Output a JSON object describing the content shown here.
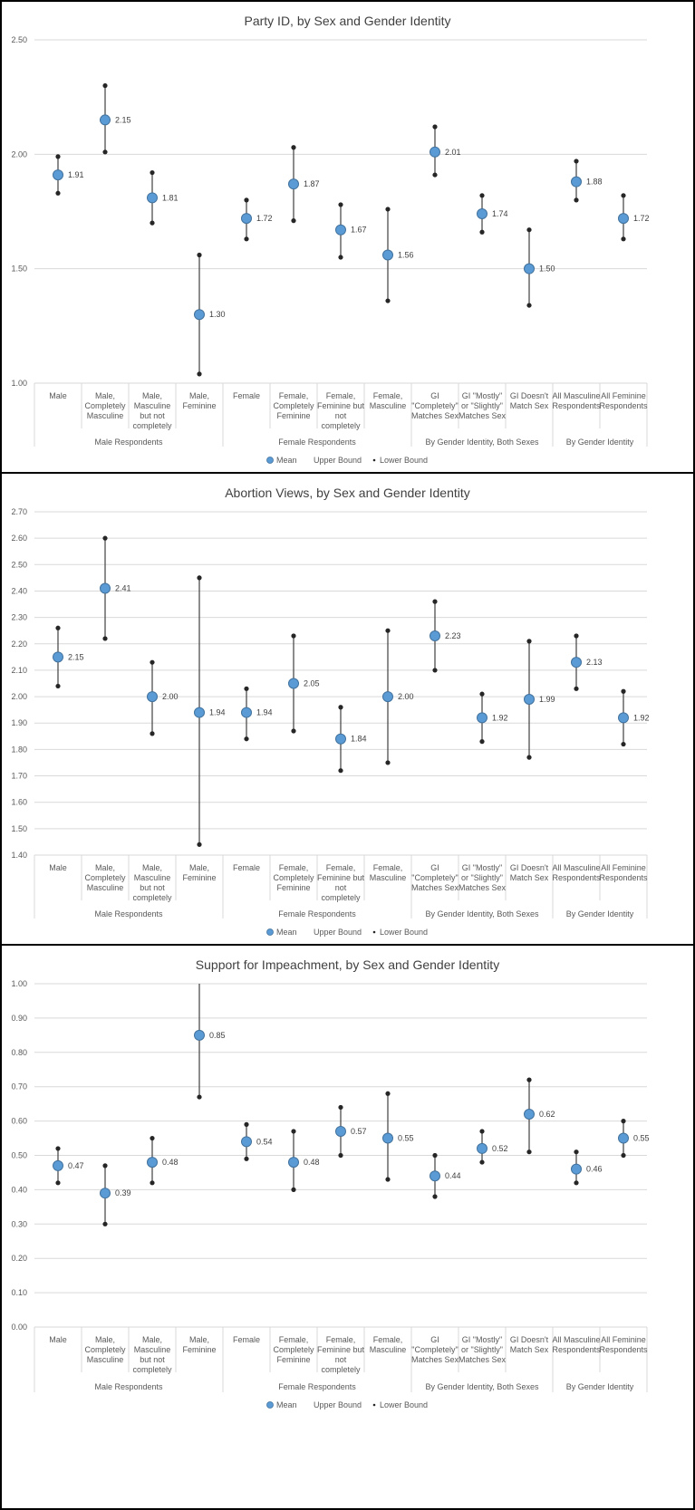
{
  "chart_data": [
    {
      "type": "errorbar",
      "title": "Party ID, by Sex and Gender Identity",
      "ylim": [
        1.0,
        2.5
      ],
      "yticks": [
        "1.00",
        "1.50",
        "2.00",
        "2.50"
      ],
      "categories": [
        "Male",
        "Male, Completely Masculine",
        "Male, Masculine but not completely",
        "Male, Feminine",
        "Female",
        "Female, Completely Feminine",
        "Female, Feminine but not completely",
        "Female, Masculine",
        "GI \"Completely\" Matches Sex",
        "GI \"Mostly\" or \"Slightly\" Matches Sex",
        "GI Doesn't Match Sex",
        "All Masculine Respondents",
        "All Feminine Respondents"
      ],
      "category_lines": [
        [
          "Male"
        ],
        [
          "Male,",
          "Completely",
          "Masculine"
        ],
        [
          "Male,",
          "Masculine",
          "but not",
          "completely"
        ],
        [
          "Male,",
          "Feminine"
        ],
        [
          "Female"
        ],
        [
          "Female,",
          "Completely",
          "Feminine"
        ],
        [
          "Female,",
          "Feminine but",
          "not",
          "completely"
        ],
        [
          "Female,",
          "Masculine"
        ],
        [
          "GI",
          "\"Completely\"",
          "Matches Sex"
        ],
        [
          "GI \"Mostly\"",
          "or \"Slightly\"",
          "Matches Sex"
        ],
        [
          "GI Doesn't",
          "Match Sex"
        ],
        [
          "All Masculine",
          "Respondents"
        ],
        [
          "All Feminine",
          "Respondents"
        ]
      ],
      "groups": [
        {
          "label": "Male Respondents",
          "start": 0,
          "end": 3
        },
        {
          "label": "Female Respondents",
          "start": 4,
          "end": 7
        },
        {
          "label": "By Gender Identity, Both Sexes",
          "start": 8,
          "end": 10
        },
        {
          "label": "By Gender Identity",
          "start": 11,
          "end": 12
        }
      ],
      "series": [
        {
          "name": "Mean",
          "values": [
            1.91,
            2.15,
            1.81,
            1.3,
            1.72,
            1.87,
            1.67,
            1.56,
            2.01,
            1.74,
            1.5,
            1.88,
            1.72
          ]
        },
        {
          "name": "Upper Bound",
          "values": [
            1.99,
            2.3,
            1.92,
            1.56,
            1.8,
            2.03,
            1.78,
            1.76,
            2.12,
            1.82,
            1.67,
            1.97,
            1.82
          ]
        },
        {
          "name": "Lower Bound",
          "values": [
            1.83,
            2.01,
            1.7,
            1.04,
            1.63,
            1.71,
            1.55,
            1.36,
            1.91,
            1.66,
            1.34,
            1.8,
            1.63
          ]
        }
      ],
      "data_labels": [
        "1.91",
        "2.15",
        "1.81",
        "1.30",
        "1.72",
        "1.87",
        "1.67",
        "1.56",
        "2.01",
        "1.74",
        "1.50",
        "1.88",
        "1.72"
      ],
      "legend": {
        "mean": "Mean",
        "upper": "Upper Bound",
        "lower": "Lower Bound"
      }
    },
    {
      "type": "errorbar",
      "title": "Abortion Views, by Sex and Gender Identity",
      "ylim": [
        1.4,
        2.7
      ],
      "yticks": [
        "1.40",
        "1.50",
        "1.60",
        "1.70",
        "1.80",
        "1.90",
        "2.00",
        "2.10",
        "2.20",
        "2.30",
        "2.40",
        "2.50",
        "2.60",
        "2.70"
      ],
      "categories": [
        "Male",
        "Male, Completely Masculine",
        "Male, Masculine but not completely",
        "Male, Feminine",
        "Female",
        "Female, Completely Feminine",
        "Female, Feminine but not completely",
        "Female, Masculine",
        "GI \"Completely\" Matches Sex",
        "GI \"Mostly\" or \"Slightly\" Matches Sex",
        "GI Doesn't Match Sex",
        "All Masculine Respondents",
        "All Feminine Respondents"
      ],
      "category_lines": [
        [
          "Male"
        ],
        [
          "Male,",
          "Completely",
          "Masculine"
        ],
        [
          "Male,",
          "Masculine",
          "but not",
          "completely"
        ],
        [
          "Male,",
          "Feminine"
        ],
        [
          "Female"
        ],
        [
          "Female,",
          "Completely",
          "Feminine"
        ],
        [
          "Female,",
          "Feminine but",
          "not",
          "completely"
        ],
        [
          "Female,",
          "Masculine"
        ],
        [
          "GI",
          "\"Completely\"",
          "Matches Sex"
        ],
        [
          "GI \"Mostly\"",
          "or \"Slightly\"",
          "Matches Sex"
        ],
        [
          "GI Doesn't",
          "Match Sex"
        ],
        [
          "All Masculine",
          "Respondents"
        ],
        [
          "All Feminine",
          "Respondents"
        ]
      ],
      "groups": [
        {
          "label": "Male Respondents",
          "start": 0,
          "end": 3
        },
        {
          "label": "Female Respondents",
          "start": 4,
          "end": 7
        },
        {
          "label": "By Gender Identity, Both Sexes",
          "start": 8,
          "end": 10
        },
        {
          "label": "By Gender Identity",
          "start": 11,
          "end": 12
        }
      ],
      "series": [
        {
          "name": "Mean",
          "values": [
            2.15,
            2.41,
            2.0,
            1.94,
            1.94,
            2.05,
            1.84,
            2.0,
            2.23,
            1.92,
            1.99,
            2.13,
            1.92
          ]
        },
        {
          "name": "Upper Bound",
          "values": [
            2.26,
            2.6,
            2.13,
            2.45,
            2.03,
            2.23,
            1.96,
            2.25,
            2.36,
            2.01,
            2.21,
            2.23,
            2.02
          ]
        },
        {
          "name": "Lower Bound",
          "values": [
            2.04,
            2.22,
            1.86,
            1.44,
            1.84,
            1.87,
            1.72,
            1.75,
            2.1,
            1.83,
            1.77,
            2.03,
            1.82
          ]
        }
      ],
      "data_labels": [
        "2.15",
        "2.41",
        "2.00",
        "1.94",
        "1.94",
        "2.05",
        "1.84",
        "2.00",
        "2.23",
        "1.92",
        "1.99",
        "2.13",
        "1.92"
      ],
      "legend": {
        "mean": "Mean",
        "upper": "Upper Bound",
        "lower": "Lower Bound"
      }
    },
    {
      "type": "errorbar",
      "title": "Support for Impeachment, by Sex and Gender Identity",
      "ylim": [
        0.0,
        1.0
      ],
      "yticks": [
        "0.00",
        "0.10",
        "0.20",
        "0.30",
        "0.40",
        "0.50",
        "0.60",
        "0.70",
        "0.80",
        "0.90",
        "1.00"
      ],
      "categories": [
        "Male",
        "Male, Completely Masculine",
        "Male, Masculine but not completely",
        "Male, Feminine",
        "Female",
        "Female, Completely Feminine",
        "Female, Feminine but not completely",
        "Female, Masculine",
        "GI \"Completely\" Matches Sex",
        "GI \"Mostly\" or \"Slightly\" Matches Sex",
        "GI Doesn't Match Sex",
        "All Masculine Respondents",
        "All Feminine Respondents"
      ],
      "category_lines": [
        [
          "Male"
        ],
        [
          "Male,",
          "Completely",
          "Masculine"
        ],
        [
          "Male,",
          "Masculine",
          "but not",
          "completely"
        ],
        [
          "Male,",
          "Feminine"
        ],
        [
          "Female"
        ],
        [
          "Female,",
          "Completely",
          "Feminine"
        ],
        [
          "Female,",
          "Feminine but",
          "not",
          "completely"
        ],
        [
          "Female,",
          "Masculine"
        ],
        [
          "GI",
          "\"Completely\"",
          "Matches Sex"
        ],
        [
          "GI \"Mostly\"",
          "or \"Slightly\"",
          "Matches Sex"
        ],
        [
          "GI Doesn't",
          "Match Sex"
        ],
        [
          "All Masculine",
          "Respondents"
        ],
        [
          "All Feminine",
          "Respondents"
        ]
      ],
      "groups": [
        {
          "label": "Male Respondents",
          "start": 0,
          "end": 3
        },
        {
          "label": "Female Respondents",
          "start": 4,
          "end": 7
        },
        {
          "label": "By Gender Identity, Both Sexes",
          "start": 8,
          "end": 10
        },
        {
          "label": "By Gender Identity",
          "start": 11,
          "end": 12
        }
      ],
      "series": [
        {
          "name": "Mean",
          "values": [
            0.47,
            0.39,
            0.48,
            0.85,
            0.54,
            0.48,
            0.57,
            0.55,
            0.44,
            0.52,
            0.62,
            0.46,
            0.55
          ]
        },
        {
          "name": "Upper Bound",
          "values": [
            0.52,
            0.47,
            0.55,
            1.03,
            0.59,
            0.57,
            0.64,
            0.68,
            0.5,
            0.57,
            0.72,
            0.51,
            0.6
          ]
        },
        {
          "name": "Lower Bound",
          "values": [
            0.42,
            0.3,
            0.42,
            0.67,
            0.49,
            0.4,
            0.5,
            0.43,
            0.38,
            0.48,
            0.51,
            0.42,
            0.5
          ]
        }
      ],
      "data_labels": [
        "0.47",
        "0.39",
        "0.48",
        "0.85",
        "0.54",
        "0.48",
        "0.57",
        "0.55",
        "0.44",
        "0.52",
        "0.62",
        "0.46",
        "0.55"
      ],
      "legend": {
        "mean": "Mean",
        "upper": "Upper Bound",
        "lower": "Lower Bound"
      }
    }
  ],
  "colors": {
    "mean_fill": "#5b9bd5",
    "mean_stroke": "#41719c",
    "whisker": "#404040",
    "bound_marker": "#262626",
    "gridline": "#d9d9d9",
    "text": "#595959"
  }
}
